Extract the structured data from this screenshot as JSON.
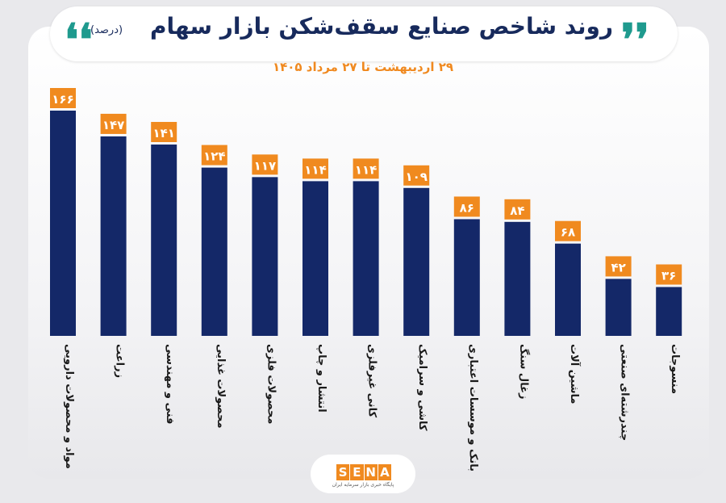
{
  "header": {
    "title": "روند شاخص صنایع سقف‌شکن بازار سهام",
    "unit": "(درصد)",
    "subtitle": "۲۹ اردیبهشت تا ۲۷ مرداد ۱۴۰۵",
    "quote_open": "❛❛",
    "quote_close": "❜❜"
  },
  "footer": {
    "logo_letters": [
      "S",
      "E",
      "N",
      "A"
    ],
    "tagline": "پایگاه خبری بازار سرمایه ایران"
  },
  "colors": {
    "bar": "#142868",
    "label_bg": "#f08a1f",
    "label_text": "#ffffff",
    "category_text": "#1a1a1a",
    "accent": "#1f9a8e"
  },
  "chart_data": {
    "type": "bar",
    "title": "روند شاخص صنایع سقف‌شکن بازار سهام",
    "ylabel": "",
    "xlabel": "",
    "ylim": [
      0,
      166
    ],
    "grid": false,
    "categories": [
      "مواد و محصولات دارویی",
      "زراعت",
      "فنی و مهندسی",
      "محصولات غذایی",
      "محصولات فلزی",
      "انتشار و چاپ",
      "کانی غیرفلزی",
      "کاشی و سرامیک",
      "بانک و موسسات اعتباری",
      "زغال سنگ",
      "ماشین آلات",
      "چندرشته‌ای صنعتی",
      "منسوجات"
    ],
    "values": [
      166,
      147,
      141,
      124,
      117,
      114,
      114,
      109,
      86,
      84,
      68,
      42,
      36
    ],
    "value_labels": [
      "۱۶۶",
      "۱۴۷",
      "۱۴۱",
      "۱۲۴",
      "۱۱۷",
      "۱۱۴",
      "۱۱۴",
      "۱۰۹",
      "۸۶",
      "۸۴",
      "۶۸",
      "۴۲",
      "۳۶"
    ]
  }
}
